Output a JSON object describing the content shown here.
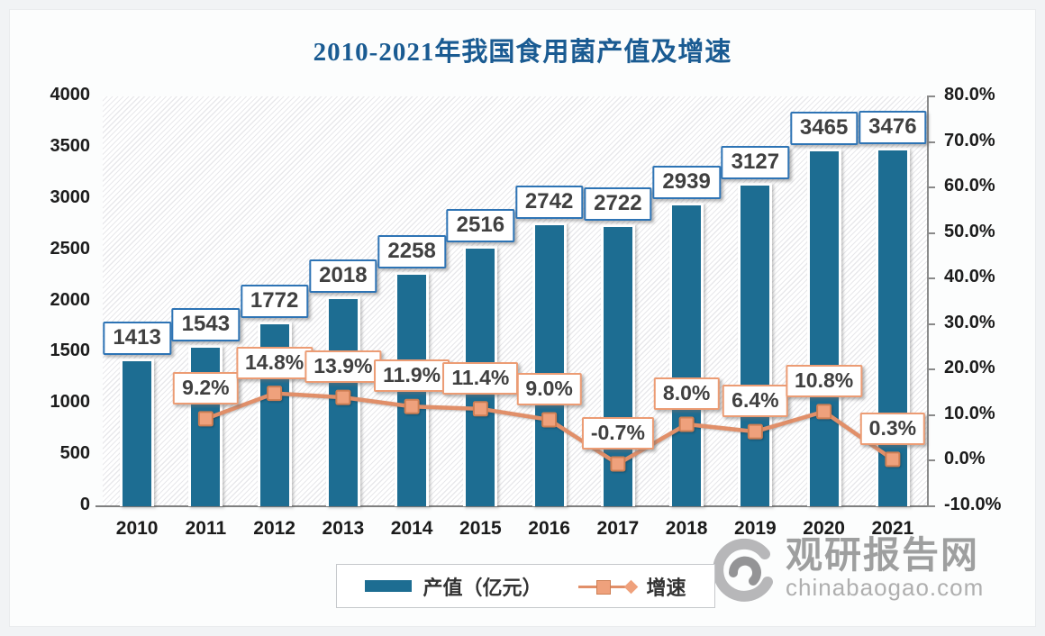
{
  "title": "2010-2021年我国食用菌产值及增速",
  "colors": {
    "title": "#1A5B92",
    "bar": "#1D6D92",
    "bar_label_border": "#2E74B5",
    "line": "#E18F69",
    "marker_fill": "#EFA17C",
    "marker_border": "#CE7E53",
    "growth_label_border": "#EC9C74",
    "label_text": "#404040"
  },
  "chart_data": {
    "type": "bar",
    "subtype": "bar+line combo, dual axis",
    "title": "2010-2021年我国食用菌产值及增速",
    "categories": [
      "2010",
      "2011",
      "2012",
      "2013",
      "2014",
      "2015",
      "2016",
      "2017",
      "2018",
      "2019",
      "2020",
      "2021"
    ],
    "series": [
      {
        "name": "产值（亿元）",
        "type": "bar",
        "axis": "left",
        "color": "#1D6D92",
        "values": [
          1413,
          1543,
          1772,
          2018,
          2258,
          2516,
          2742,
          2722,
          2939,
          3127,
          3465,
          3476
        ],
        "labels": [
          "1413",
          "1543",
          "1772",
          "2018",
          "2258",
          "2516",
          "2742",
          "2722",
          "2939",
          "3127",
          "3465",
          "3476"
        ]
      },
      {
        "name": "增速",
        "type": "line",
        "axis": "right",
        "color": "#E18F69",
        "values": [
          null,
          9.2,
          14.8,
          13.9,
          11.9,
          11.4,
          9.0,
          -0.7,
          8.0,
          6.4,
          10.8,
          0.3
        ],
        "labels": [
          "",
          "9.2%",
          "14.8%",
          "13.9%",
          "11.9%",
          "11.4%",
          "9.0%",
          "-0.7%",
          "8.0%",
          "6.4%",
          "10.8%",
          "0.3%"
        ]
      }
    ],
    "left_axis": {
      "min": 0,
      "max": 4000,
      "step": 500,
      "ticks": [
        {
          "label": "4000",
          "value": 4000
        },
        {
          "label": "3500",
          "value": 3500
        },
        {
          "label": "3000",
          "value": 3000
        },
        {
          "label": "2500",
          "value": 2500
        },
        {
          "label": "2000",
          "value": 2000
        },
        {
          "label": "1500",
          "value": 1500
        },
        {
          "label": "1000",
          "value": 1000
        },
        {
          "label": "500",
          "value": 500
        },
        {
          "label": "0",
          "value": 0
        }
      ]
    },
    "right_axis": {
      "min": -10,
      "max": 80,
      "step": 10,
      "ticks": [
        {
          "label": "80.0%",
          "value": 80
        },
        {
          "label": "70.0%",
          "value": 70
        },
        {
          "label": "60.0%",
          "value": 60
        },
        {
          "label": "50.0%",
          "value": 50
        },
        {
          "label": "40.0%",
          "value": 40
        },
        {
          "label": "30.0%",
          "value": 30
        },
        {
          "label": "20.0%",
          "value": 20
        },
        {
          "label": "10.0%",
          "value": 10
        },
        {
          "label": "0.0%",
          "value": 0
        },
        {
          "label": "-10.0%",
          "value": -10
        }
      ]
    },
    "grid": "off",
    "plot_background": "diagonal-hatch",
    "legend_position": "bottom-center"
  },
  "legend": {
    "items": [
      {
        "label": "产值（亿元）",
        "swatch": "bar"
      },
      {
        "label": "增速",
        "swatch": "line-marker"
      }
    ]
  },
  "watermark": {
    "name": "观研报告网",
    "domain": "chinabaogao.com"
  }
}
